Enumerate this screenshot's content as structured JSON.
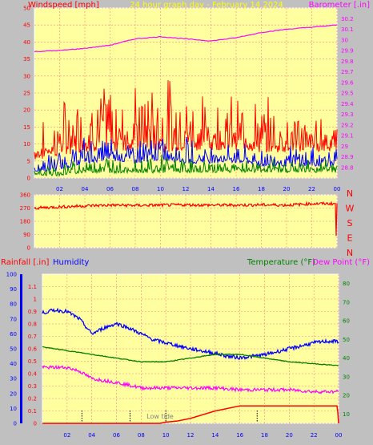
{
  "header": {
    "left_label": "Windspeed [mph]",
    "center_label": "24 hour graph day - February 14 2024",
    "right_label": "Barometer [.in]"
  },
  "lower_header": {
    "rainfall_label": "Rainfall [.in]",
    "humidity_label": "Humidity",
    "temperature_label": "Temperature (°F)",
    "dewpoint_label": "Dew Point (°F)"
  },
  "colors": {
    "plot_bg": "#ffffa0",
    "frame_bg": "#c0c0c0",
    "grid": "#ff8080",
    "wind_gust": "#ff0000",
    "wind_avg": "#0000ff",
    "wind_low": "#008000",
    "barometer": "#ff00ff",
    "direction": "#ff0000",
    "humidity": "#0000ff",
    "temperature": "#008000",
    "dewpoint": "#ff00ff",
    "rainfall": "#ff0000",
    "center_title": "#ffff00"
  },
  "x_ticks": [
    "02",
    "04",
    "06",
    "08",
    "10",
    "12",
    "14",
    "16",
    "18",
    "20",
    "22",
    "00"
  ],
  "direction_letters": [
    "N",
    "W",
    "S",
    "E",
    "N"
  ],
  "annotation": "Low tide",
  "chart_data": [
    {
      "type": "line",
      "title": "24 hour graph day - February 14 2024",
      "x_unit": "hour",
      "xlim": [
        0,
        24
      ],
      "y_left": {
        "label": "Windspeed [mph]",
        "lim": [
          0,
          50
        ],
        "ticks": [
          "0",
          "5",
          "10",
          "15",
          "20",
          "25",
          "30",
          "35",
          "40",
          "45",
          "50"
        ]
      },
      "y_right": {
        "label": "Barometer [.in]",
        "lim": [
          28.7,
          30.3
        ],
        "ticks": [
          "28.8",
          "28.9",
          "29",
          "29.1",
          "29.2",
          "29.3",
          "29.4",
          "29.5",
          "29.6",
          "29.7",
          "29.8",
          "29.9",
          "30",
          "30.1",
          "30.2"
        ]
      },
      "grid": true,
      "series": [
        {
          "name": "Windspeed [mph]",
          "axis": "left",
          "role": "gust",
          "x": [
            0,
            2,
            4,
            6,
            8,
            10,
            12,
            14,
            16,
            18,
            20,
            22,
            24
          ],
          "base": [
            6,
            8,
            10,
            10,
            10,
            10,
            10,
            10,
            10,
            9,
            9,
            9,
            9
          ],
          "spread": [
            4,
            8,
            11,
            12,
            10,
            12,
            10,
            9,
            8,
            8,
            7,
            6,
            6
          ]
        },
        {
          "name": "Windspeed [mph]",
          "axis": "left",
          "role": "average",
          "x": [
            0,
            2,
            4,
            6,
            8,
            10,
            12,
            14,
            16,
            18,
            20,
            22,
            24
          ],
          "base": [
            2,
            3,
            5,
            6,
            5,
            6,
            5,
            5,
            5,
            4,
            4,
            4,
            4
          ],
          "spread": [
            2,
            3,
            4,
            4,
            4,
            4,
            4,
            3,
            3,
            3,
            3,
            3,
            3
          ]
        },
        {
          "name": "Windspeed [mph]",
          "axis": "left",
          "role": "low",
          "x": [
            0,
            2,
            4,
            6,
            8,
            10,
            12,
            14,
            16,
            18,
            20,
            22,
            24
          ],
          "base": [
            1,
            1,
            2,
            2,
            2,
            2,
            2,
            2,
            2,
            2,
            2,
            2,
            2
          ],
          "spread": [
            1,
            2,
            2,
            3,
            2,
            3,
            2,
            2,
            2,
            2,
            2,
            2,
            2
          ]
        },
        {
          "name": "Barometer [.in]",
          "axis": "right",
          "x": [
            0,
            2,
            4,
            6,
            8,
            10,
            12,
            14,
            16,
            18,
            20,
            22,
            24
          ],
          "y": [
            29.89,
            29.9,
            29.92,
            29.95,
            30.01,
            30.03,
            30.01,
            29.99,
            30.02,
            30.07,
            30.1,
            30.12,
            30.14
          ]
        }
      ]
    },
    {
      "type": "line",
      "title": "Wind direction",
      "x_unit": "hour",
      "xlim": [
        0,
        24
      ],
      "y": {
        "lim": [
          0,
          360
        ],
        "ticks": [
          "0",
          "90",
          "180",
          "270",
          "360"
        ]
      },
      "grid": true,
      "series": [
        {
          "name": "Wind direction",
          "x": [
            0,
            2,
            4,
            6,
            8,
            10,
            12,
            14,
            16,
            18,
            20,
            22,
            23.9,
            23.95,
            24
          ],
          "y": [
            270,
            278,
            285,
            290,
            288,
            290,
            292,
            290,
            290,
            292,
            290,
            300,
            300,
            0,
            300
          ],
          "spread": 10
        }
      ]
    },
    {
      "type": "line",
      "x_unit": "hour",
      "xlim": [
        0,
        24
      ],
      "y_outer_left": {
        "label": "Humidity",
        "lim": [
          0,
          100
        ],
        "ticks": [
          "0",
          "10",
          "20",
          "30",
          "40",
          "50",
          "60",
          "70",
          "80",
          "90",
          "100"
        ]
      },
      "y_left": {
        "label": "Rainfall [.in]",
        "lim": [
          0,
          1.2
        ],
        "ticks": [
          "0",
          "0.1",
          "0.2",
          "0.3",
          "0.4",
          "0.5",
          "0.6",
          "0.7",
          "0.8",
          "0.9",
          "1",
          "1.1"
        ]
      },
      "y_right": {
        "label": "Temperature (°F)",
        "lim": [
          5,
          85
        ],
        "ticks": [
          "10",
          "20",
          "30",
          "40",
          "50",
          "60",
          "70",
          "80"
        ]
      },
      "grid": true,
      "series": [
        {
          "name": "Humidity",
          "axis": "outer_left",
          "x": [
            0,
            1,
            2,
            3,
            4,
            5,
            6,
            7,
            8,
            9,
            10,
            12,
            14,
            15,
            16,
            17,
            18,
            20,
            22,
            23,
            24
          ],
          "y": [
            74,
            76,
            75,
            70,
            60,
            64,
            67,
            64,
            60,
            56,
            54,
            50,
            47,
            45,
            44,
            45,
            46,
            50,
            54,
            55,
            55
          ]
        },
        {
          "name": "Temperature (°F)",
          "axis": "right",
          "x": [
            0,
            2,
            4,
            6,
            8,
            10,
            12,
            14,
            16,
            18,
            20,
            22,
            24
          ],
          "y": [
            46,
            44,
            42,
            40,
            38,
            38,
            40,
            42,
            42,
            40,
            38,
            37,
            36
          ]
        },
        {
          "name": "Dew Point (°F)",
          "axis": "right",
          "x": [
            0,
            2,
            3,
            4,
            6,
            8,
            10,
            12,
            14,
            16,
            18,
            20,
            22,
            24
          ],
          "y": [
            35,
            35,
            33,
            29,
            27,
            24,
            24,
            24,
            24,
            23,
            23,
            23,
            22,
            22
          ]
        },
        {
          "name": "Rainfall [.in]",
          "axis": "left",
          "x": [
            0,
            9.5,
            10,
            11,
            12,
            13,
            14,
            15,
            16,
            17,
            18,
            20,
            22,
            23.9,
            24
          ],
          "y": [
            0,
            0,
            0.01,
            0.02,
            0.04,
            0.07,
            0.1,
            0.12,
            0.14,
            0.14,
            0.14,
            0.14,
            0.14,
            0.14,
            0
          ]
        }
      ]
    }
  ]
}
